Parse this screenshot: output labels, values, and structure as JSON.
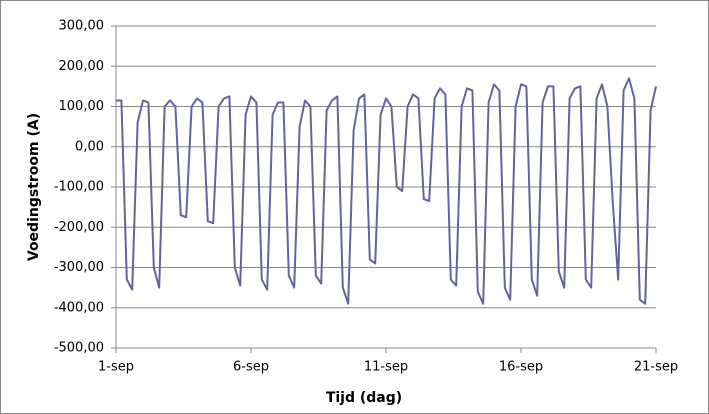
{
  "chart_data": {
    "type": "line",
    "x_label": "Tijd (dag)",
    "y_label": "Voedingstroom (A)",
    "color": "#64649e",
    "grid": true,
    "xlim": [
      1,
      21
    ],
    "xticks": [
      {
        "value": 1,
        "label": "1-sep"
      },
      {
        "value": 6,
        "label": "6-sep"
      },
      {
        "value": 11,
        "label": "11-sep"
      },
      {
        "value": 16,
        "label": "16-sep"
      },
      {
        "value": 21,
        "label": "21-sep"
      }
    ],
    "ylim": [
      -500,
      300
    ],
    "yticks": [
      {
        "value": -500,
        "label": "-500,00"
      },
      {
        "value": -400,
        "label": "-400,00"
      },
      {
        "value": -300,
        "label": "-300,00"
      },
      {
        "value": -200,
        "label": "-200,00"
      },
      {
        "value": -100,
        "label": "-100,00"
      },
      {
        "value": 0,
        "label": "0,00"
      },
      {
        "value": 100,
        "label": "100,00"
      },
      {
        "value": 200,
        "label": "200,00"
      },
      {
        "value": 300,
        "label": "300,00"
      }
    ],
    "x": [
      1,
      1.2,
      1.4,
      1.6,
      1.8,
      2,
      2.2,
      2.4,
      2.6,
      2.8,
      3,
      3.2,
      3.4,
      3.6,
      3.8,
      4,
      4.2,
      4.4,
      4.6,
      4.8,
      5,
      5.2,
      5.4,
      5.6,
      5.8,
      6,
      6.2,
      6.4,
      6.6,
      6.8,
      7,
      7.2,
      7.4,
      7.6,
      7.8,
      8,
      8.2,
      8.4,
      8.6,
      8.8,
      9,
      9.2,
      9.4,
      9.6,
      9.8,
      10,
      10.2,
      10.4,
      10.6,
      10.8,
      11,
      11.2,
      11.4,
      11.6,
      11.8,
      12,
      12.2,
      12.4,
      12.6,
      12.8,
      13,
      13.2,
      13.4,
      13.6,
      13.8,
      14,
      14.2,
      14.4,
      14.6,
      14.8,
      15,
      15.2,
      15.4,
      15.6,
      15.8,
      16,
      16.2,
      16.4,
      16.6,
      16.8,
      17,
      17.2,
      17.4,
      17.6,
      17.8,
      18,
      18.2,
      18.4,
      18.6,
      18.8,
      19,
      19.2,
      19.4,
      19.6,
      19.8,
      20,
      20.2,
      20.4,
      20.6,
      20.8,
      21
    ],
    "values": [
      115,
      115,
      -330,
      -355,
      60,
      115,
      110,
      -300,
      -350,
      100,
      115,
      100,
      -170,
      -175,
      100,
      120,
      110,
      -185,
      -190,
      100,
      120,
      125,
      -300,
      -345,
      80,
      125,
      110,
      -330,
      -355,
      80,
      110,
      110,
      -320,
      -350,
      50,
      115,
      100,
      -320,
      -340,
      90,
      115,
      125,
      -350,
      -390,
      40,
      120,
      130,
      -280,
      -290,
      80,
      120,
      100,
      -100,
      -110,
      100,
      130,
      120,
      -130,
      -135,
      120,
      145,
      130,
      -330,
      -345,
      100,
      145,
      140,
      -360,
      -390,
      110,
      155,
      140,
      -350,
      -380,
      100,
      155,
      150,
      -330,
      -370,
      110,
      150,
      150,
      -310,
      -350,
      120,
      145,
      150,
      -330,
      -350,
      120,
      155,
      100,
      -140,
      -330,
      140,
      170,
      120,
      -380,
      -390,
      90,
      150
    ]
  }
}
